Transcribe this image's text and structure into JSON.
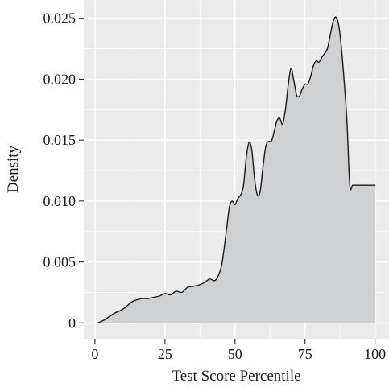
{
  "chart_data": {
    "type": "area",
    "title": "",
    "xlabel": "Test Score Percentile",
    "ylabel": "Density",
    "xlim": [
      -4,
      105
    ],
    "ylim": [
      -0.0013,
      0.0265
    ],
    "x_ticks": [
      0,
      25,
      50,
      75,
      100
    ],
    "x_tick_labels": [
      "0",
      "25",
      "50",
      "75",
      "100"
    ],
    "y_ticks": [
      0,
      0.005,
      0.01,
      0.015,
      0.02,
      0.025
    ],
    "y_tick_labels": [
      "0",
      "0.005",
      "0.010",
      "0.015",
      "0.020",
      "0.025"
    ],
    "grid": true,
    "legend": "none",
    "colors": {
      "panel_background": "#ebebeb",
      "grid": "#ffffff",
      "fill": "#cfd0d2",
      "line": "#1a1a1a"
    },
    "series": [
      {
        "x": [
          1,
          3,
          5,
          7,
          9,
          11,
          13,
          15,
          17,
          19,
          21,
          23,
          25,
          27,
          29,
          31,
          33,
          35,
          37,
          39,
          41,
          43,
          45,
          46,
          47,
          48,
          49,
          50,
          51,
          52,
          53,
          54,
          55,
          56,
          57,
          58,
          59,
          60,
          61,
          62,
          63,
          64,
          65,
          66,
          67,
          68,
          69,
          70,
          71,
          72,
          73,
          74,
          75,
          76,
          77,
          78,
          79,
          80,
          81,
          82,
          83,
          84,
          85,
          86,
          87,
          88,
          89,
          90,
          91,
          92,
          93,
          94,
          95,
          96,
          97,
          98,
          99,
          100
        ],
        "values": [
          0.0,
          0.0002,
          0.0005,
          0.0008,
          0.001,
          0.0013,
          0.0017,
          0.0019,
          0.002,
          0.002,
          0.0021,
          0.0022,
          0.0024,
          0.0023,
          0.0026,
          0.0025,
          0.0029,
          0.003,
          0.0031,
          0.0033,
          0.0036,
          0.0035,
          0.0045,
          0.0059,
          0.0077,
          0.0095,
          0.01,
          0.0097,
          0.0102,
          0.0105,
          0.0112,
          0.0135,
          0.0148,
          0.0142,
          0.0118,
          0.0105,
          0.0108,
          0.0128,
          0.0145,
          0.0149,
          0.0149,
          0.0157,
          0.0166,
          0.0168,
          0.0163,
          0.0175,
          0.0195,
          0.0209,
          0.0199,
          0.0187,
          0.0186,
          0.0192,
          0.0196,
          0.0196,
          0.0202,
          0.0211,
          0.0215,
          0.0214,
          0.0218,
          0.0221,
          0.0225,
          0.0236,
          0.0247,
          0.0251,
          0.0245,
          0.0226,
          0.0198,
          0.0165,
          0.0113,
          0.0113,
          0.0113,
          0.0113,
          0.0113,
          0.0113,
          0.0113,
          0.0113,
          0.0113,
          0.0113
        ]
      }
    ]
  }
}
